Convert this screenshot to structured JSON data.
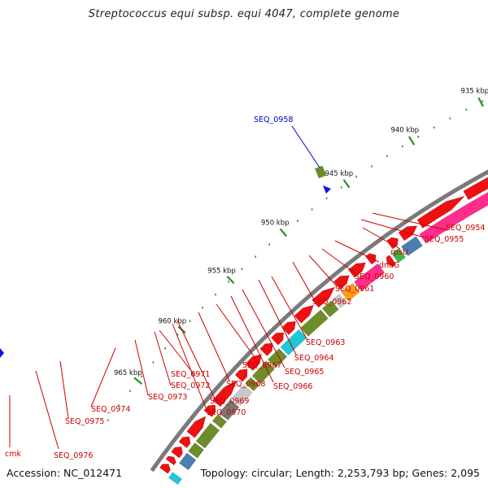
{
  "title": "Streptococcus equi subsp. equi 4047, complete genome",
  "footer": {
    "accession": "Accession: NC_012471",
    "summary": "Topology: circular; Length: 2,253,793 bp; Genes: 2,095"
  },
  "colors": {
    "backbone": "#7a7a7a",
    "cds": "#ee1111",
    "olive": "#6e8c2a",
    "gray": "#777777",
    "lightgray": "#c8c8c8",
    "steelblue": "#4a7fb0",
    "cyan": "#1ec8d8",
    "orange": "#ff9a1a",
    "pink": "#ff2d8c",
    "tick": "#2e8b2e",
    "label_red": "#cc0000",
    "label_blue": "#0000cc"
  },
  "scale": {
    "labels": [
      "935 kbp",
      "940 kbp",
      "945 kbp",
      "950 kbp",
      "955 kbp",
      "960 kbp",
      "965 kbp"
    ]
  },
  "callouts": {
    "top": {
      "label": "SEQ_0958"
    },
    "bottom": [
      {
        "label": "SEQ_0954"
      },
      {
        "label": "SEQ_0955"
      },
      {
        "label": "rpsU"
      },
      {
        "label": "dnaG"
      },
      {
        "label": "SEQ_0960"
      },
      {
        "label": "SEQ_0961"
      },
      {
        "label": "SEQ_0962"
      },
      {
        "label": "SEQ_0963"
      },
      {
        "label": "SEQ_0964"
      },
      {
        "label": "SEQ_0965"
      },
      {
        "label": "SEQ_0966"
      },
      {
        "label": "SEQ_0967"
      },
      {
        "label": "SEQ_0968"
      },
      {
        "label": "SEQ_0969"
      },
      {
        "label": "SEQ_0970"
      },
      {
        "label": "SEQ_0971"
      },
      {
        "label": "SEQ_0972"
      },
      {
        "label": "SEQ_0973"
      },
      {
        "label": "SEQ_0974"
      },
      {
        "label": "SEQ_0975"
      },
      {
        "label": "SEQ_0976"
      },
      {
        "label": "cmk"
      }
    ]
  }
}
